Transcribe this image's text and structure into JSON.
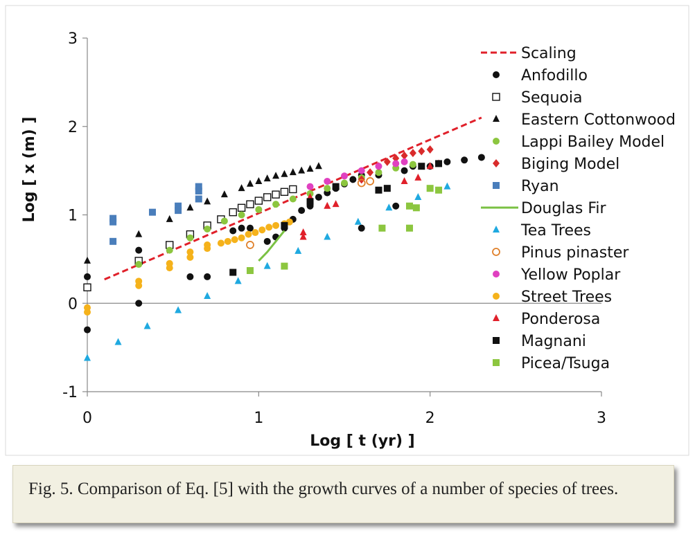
{
  "caption": "Fig. 5. Comparison of Eq. [5] with the growth curves of a number of species of trees.",
  "chart_data": {
    "type": "scatter",
    "xlabel": "Log [ t (yr) ]",
    "ylabel": "Log [ x (m) ]",
    "xlim": [
      0,
      3
    ],
    "ylim": [
      -1,
      3
    ],
    "xticks": [
      "0",
      "1",
      "2",
      "3"
    ],
    "yticks": [
      "-1",
      "0",
      "1",
      "2",
      "3"
    ],
    "grid": false,
    "legend_position": "right",
    "series": [
      {
        "name": "Scaling",
        "kind": "dashed-line",
        "color": "#e0202a",
        "x": [
          0.1,
          2.3
        ],
        "y": [
          0.27,
          2.1
        ]
      },
      {
        "name": "Anfodillo",
        "marker": "circle",
        "color": "#111111",
        "x": [
          0,
          0,
          0.3,
          0.3,
          0.48,
          0.6,
          0.7,
          0.85,
          0.9,
          0.95,
          1.05,
          1.1,
          1.15,
          1.2,
          1.25,
          1.3,
          1.35,
          1.4,
          1.45,
          1.5,
          1.55,
          1.6,
          1.6,
          1.7,
          1.8,
          1.85,
          1.9,
          2.0,
          2.1,
          2.2,
          2.3
        ],
        "y": [
          -0.3,
          0.3,
          0,
          0.6,
          0.65,
          0.3,
          0.3,
          0.82,
          0.85,
          0.85,
          0.7,
          0.75,
          0.85,
          0.95,
          1.05,
          1.1,
          1.2,
          1.25,
          1.3,
          1.35,
          1.4,
          0.85,
          1.45,
          1.45,
          1.1,
          1.5,
          1.55,
          1.55,
          1.6,
          1.62,
          1.65
        ]
      },
      {
        "name": "Sequoia",
        "marker": "square-open",
        "color": "#111111",
        "x": [
          0,
          0.3,
          0.48,
          0.6,
          0.7,
          0.78,
          0.85,
          0.9,
          0.95,
          1.0,
          1.05,
          1.1,
          1.15,
          1.2
        ],
        "y": [
          0.18,
          0.48,
          0.66,
          0.78,
          0.88,
          0.95,
          1.03,
          1.08,
          1.12,
          1.16,
          1.2,
          1.23,
          1.26,
          1.29
        ]
      },
      {
        "name": "Eastern Cottonwood",
        "marker": "triangle",
        "color": "#111111",
        "x": [
          0,
          0.3,
          0.48,
          0.6,
          0.7,
          0.8,
          0.9,
          0.95,
          1.0,
          1.05,
          1.1,
          1.15,
          1.2,
          1.25,
          1.3,
          1.35
        ],
        "y": [
          0.48,
          0.78,
          0.95,
          1.08,
          1.15,
          1.23,
          1.3,
          1.35,
          1.38,
          1.41,
          1.44,
          1.46,
          1.48,
          1.5,
          1.52,
          1.55
        ]
      },
      {
        "name": "Lappi Bailey Model",
        "marker": "circle",
        "color": "#8cc63f",
        "x": [
          0.3,
          0.48,
          0.6,
          0.7,
          0.8,
          0.9,
          1.0,
          1.1,
          1.2,
          1.3,
          1.4,
          1.5,
          1.6,
          1.7,
          1.8,
          1.9
        ],
        "y": [
          0.44,
          0.6,
          0.74,
          0.84,
          0.93,
          1.0,
          1.06,
          1.12,
          1.18,
          1.24,
          1.3,
          1.36,
          1.42,
          1.48,
          1.53,
          1.57
        ]
      },
      {
        "name": "Biging Model",
        "marker": "diamond",
        "color": "#d92b2b",
        "x": [
          1.6,
          1.65,
          1.7,
          1.75,
          1.8,
          1.85,
          1.9,
          1.95,
          2.0
        ],
        "y": [
          1.4,
          1.48,
          1.55,
          1.6,
          1.64,
          1.67,
          1.7,
          1.72,
          1.74
        ]
      },
      {
        "name": "Ryan",
        "marker": "square",
        "color": "#4a7ebb",
        "x": [
          0.15,
          0.15,
          0.15,
          0.38,
          0.53,
          0.53,
          0.65,
          0.65,
          0.65
        ],
        "y": [
          0.7,
          0.92,
          0.96,
          1.03,
          1.05,
          1.1,
          1.18,
          1.27,
          1.32
        ]
      },
      {
        "name": "Douglas Fir",
        "kind": "line",
        "color": "#7ac143",
        "x": [
          1.0,
          1.05,
          1.1,
          1.15
        ],
        "y": [
          0.48,
          0.58,
          0.7,
          0.82
        ]
      },
      {
        "name": "Tea Trees",
        "marker": "triangle",
        "color": "#1fa9e0",
        "x": [
          0,
          0.18,
          0.35,
          0.53,
          0.7,
          0.88,
          1.05,
          1.23,
          1.4,
          1.58,
          1.76,
          1.93,
          2.1
        ],
        "y": [
          -0.62,
          -0.44,
          -0.26,
          -0.08,
          0.08,
          0.25,
          0.42,
          0.59,
          0.75,
          0.92,
          1.08,
          1.2,
          1.32
        ]
      },
      {
        "name": "Pinus pinaster",
        "marker": "circle-open",
        "color": "#e0802a",
        "x": [
          0.95,
          1.6,
          1.65
        ],
        "y": [
          0.66,
          1.36,
          1.38
        ]
      },
      {
        "name": "Yellow Poplar",
        "marker": "circle",
        "color": "#e040c0",
        "x": [
          1.3,
          1.4,
          1.5,
          1.6,
          1.7,
          1.8,
          1.85
        ],
        "y": [
          1.32,
          1.38,
          1.44,
          1.5,
          1.55,
          1.58,
          1.6
        ]
      },
      {
        "name": "Street Trees",
        "marker": "circle",
        "color": "#f5b21b",
        "x": [
          0,
          0,
          0.3,
          0.3,
          0.48,
          0.48,
          0.6,
          0.6,
          0.7,
          0.7,
          0.78,
          0.82,
          0.86,
          0.9,
          0.94,
          0.98,
          1.02,
          1.06,
          1.1,
          1.15,
          1.18
        ],
        "y": [
          -0.05,
          -0.1,
          0.2,
          0.25,
          0.4,
          0.45,
          0.52,
          0.58,
          0.62,
          0.66,
          0.68,
          0.7,
          0.72,
          0.74,
          0.78,
          0.8,
          0.83,
          0.86,
          0.88,
          0.9,
          0.92
        ]
      },
      {
        "name": "Ponderosa",
        "marker": "triangle",
        "color": "#e0202a",
        "x": [
          1.26,
          1.26,
          1.3,
          1.4,
          1.45,
          1.85,
          1.93,
          2.0,
          2.05
        ],
        "y": [
          0.75,
          0.8,
          1.2,
          1.1,
          1.12,
          1.38,
          1.42,
          1.55,
          1.58
        ]
      },
      {
        "name": "Magnani",
        "marker": "square",
        "color": "#111111",
        "x": [
          0.85,
          1.15,
          1.3,
          1.45,
          1.7,
          1.75,
          1.95,
          2.05
        ],
        "y": [
          0.35,
          0.88,
          1.15,
          1.32,
          1.28,
          1.3,
          1.55,
          1.58
        ]
      },
      {
        "name": "Picea/Tsuga",
        "marker": "square",
        "color": "#8cc63f",
        "x": [
          0.95,
          1.15,
          1.72,
          1.88,
          1.88,
          1.92,
          2.0,
          2.05
        ],
        "y": [
          0.37,
          0.42,
          0.85,
          0.85,
          1.1,
          1.08,
          1.3,
          1.28
        ]
      }
    ]
  }
}
